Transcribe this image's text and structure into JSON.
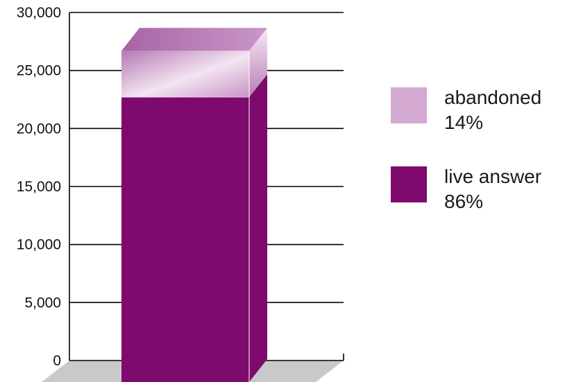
{
  "chart_data": {
    "type": "bar",
    "stacked": true,
    "three_d": true,
    "categories": [
      ""
    ],
    "series": [
      {
        "name": "live answer",
        "percent_label": "86%",
        "values": [
          22700
        ],
        "color": "#7d0a6c"
      },
      {
        "name": "abandoned",
        "percent_label": "14%",
        "values": [
          4000
        ],
        "color": "#d4a9d2"
      }
    ],
    "ylim": [
      0,
      30000
    ],
    "yticks": [
      0,
      5000,
      10000,
      15000,
      20000,
      25000,
      30000
    ],
    "ytick_labels": [
      "0",
      "5,000",
      "10,000",
      "15,000",
      "20,000",
      "25,000",
      "30,000"
    ],
    "grid": true,
    "legend_position": "right",
    "title": "",
    "xlabel": "",
    "ylabel": ""
  }
}
